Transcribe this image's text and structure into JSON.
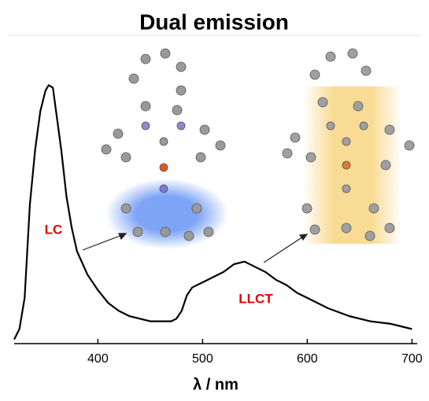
{
  "chart_data": {
    "type": "line",
    "title": "Dual emission",
    "x_label": "λ / nm",
    "x": [
      320,
      325,
      330,
      335,
      340,
      345,
      350,
      353,
      357,
      360,
      365,
      370,
      375,
      380,
      390,
      400,
      410,
      420,
      430,
      440,
      450,
      460,
      470,
      475,
      480,
      485,
      490,
      500,
      510,
      520,
      530,
      540,
      550,
      560,
      570,
      580,
      590,
      600,
      620,
      640,
      660,
      680,
      700
    ],
    "y": [
      0.01,
      0.05,
      0.17,
      0.53,
      0.74,
      0.89,
      0.97,
      0.99,
      0.98,
      0.89,
      0.74,
      0.56,
      0.44,
      0.35,
      0.26,
      0.2,
      0.15,
      0.12,
      0.1,
      0.09,
      0.08,
      0.08,
      0.08,
      0.09,
      0.12,
      0.18,
      0.21,
      0.23,
      0.25,
      0.27,
      0.3,
      0.31,
      0.29,
      0.27,
      0.24,
      0.22,
      0.19,
      0.17,
      0.13,
      0.1,
      0.08,
      0.07,
      0.05
    ],
    "color": "#000000",
    "xlim": [
      320,
      705
    ],
    "xticks": [
      400,
      500,
      600,
      700
    ],
    "ylim": [
      0,
      1
    ],
    "annotations": [
      "LC",
      "LLCT"
    ],
    "annotation_color": "#e00000"
  }
}
